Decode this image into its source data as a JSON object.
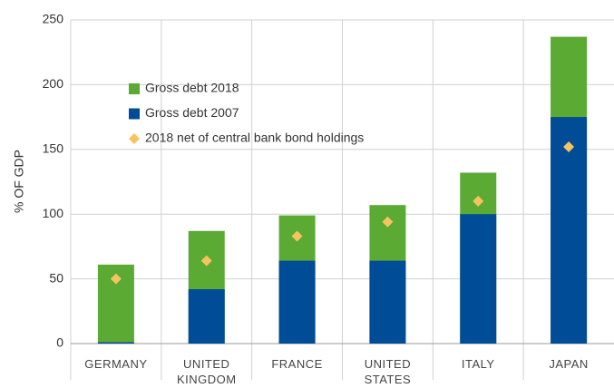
{
  "chart_data": {
    "type": "bar",
    "y_label": "% OF GDP",
    "categories": [
      "GERMANY",
      "UNITED KINGDOM",
      "FRANCE",
      "UNITED STATES",
      "ITALY",
      "JAPAN"
    ],
    "series": [
      {
        "name": "Gross debt 2018",
        "color": "#5aaa34",
        "kind": "bar",
        "values": [
          61,
          87,
          99,
          107,
          132,
          237
        ]
      },
      {
        "name": "Gross debt 2007",
        "color": "#004c97",
        "kind": "bar",
        "values": [
          1,
          42,
          64,
          64,
          100,
          175
        ]
      },
      {
        "name": "2018 net of central bank bond holdings",
        "color": "#f7c35f",
        "kind": "diamond",
        "values": [
          50,
          64,
          83,
          94,
          110,
          152
        ]
      }
    ],
    "ylim": [
      0,
      250
    ],
    "yticks": [
      0,
      50,
      100,
      150,
      200,
      250
    ],
    "grid": true
  }
}
